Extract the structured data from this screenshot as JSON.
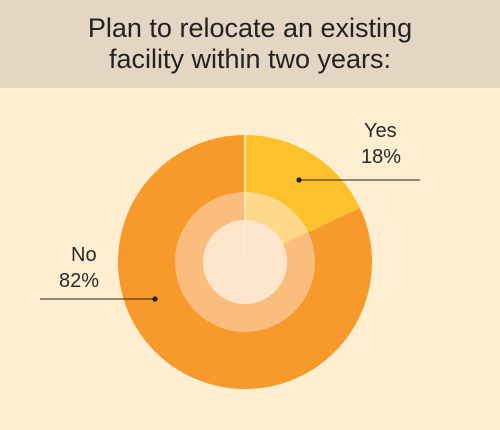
{
  "title": "Plan to relocate an existing facility within two years:",
  "chart_data": {
    "type": "pie",
    "categories": [
      "Yes",
      "No"
    ],
    "values": [
      18,
      82
    ],
    "value_labels": [
      "18%",
      "82%"
    ],
    "colors": [
      "#fdc12b",
      "#f79a2b"
    ],
    "inner_ring_colors": [
      "#fed98d",
      "#fbbd7e"
    ],
    "center_color": "#fde6cc",
    "background": "#fdefd0",
    "title": "Plan to relocate an existing facility within two years:"
  }
}
